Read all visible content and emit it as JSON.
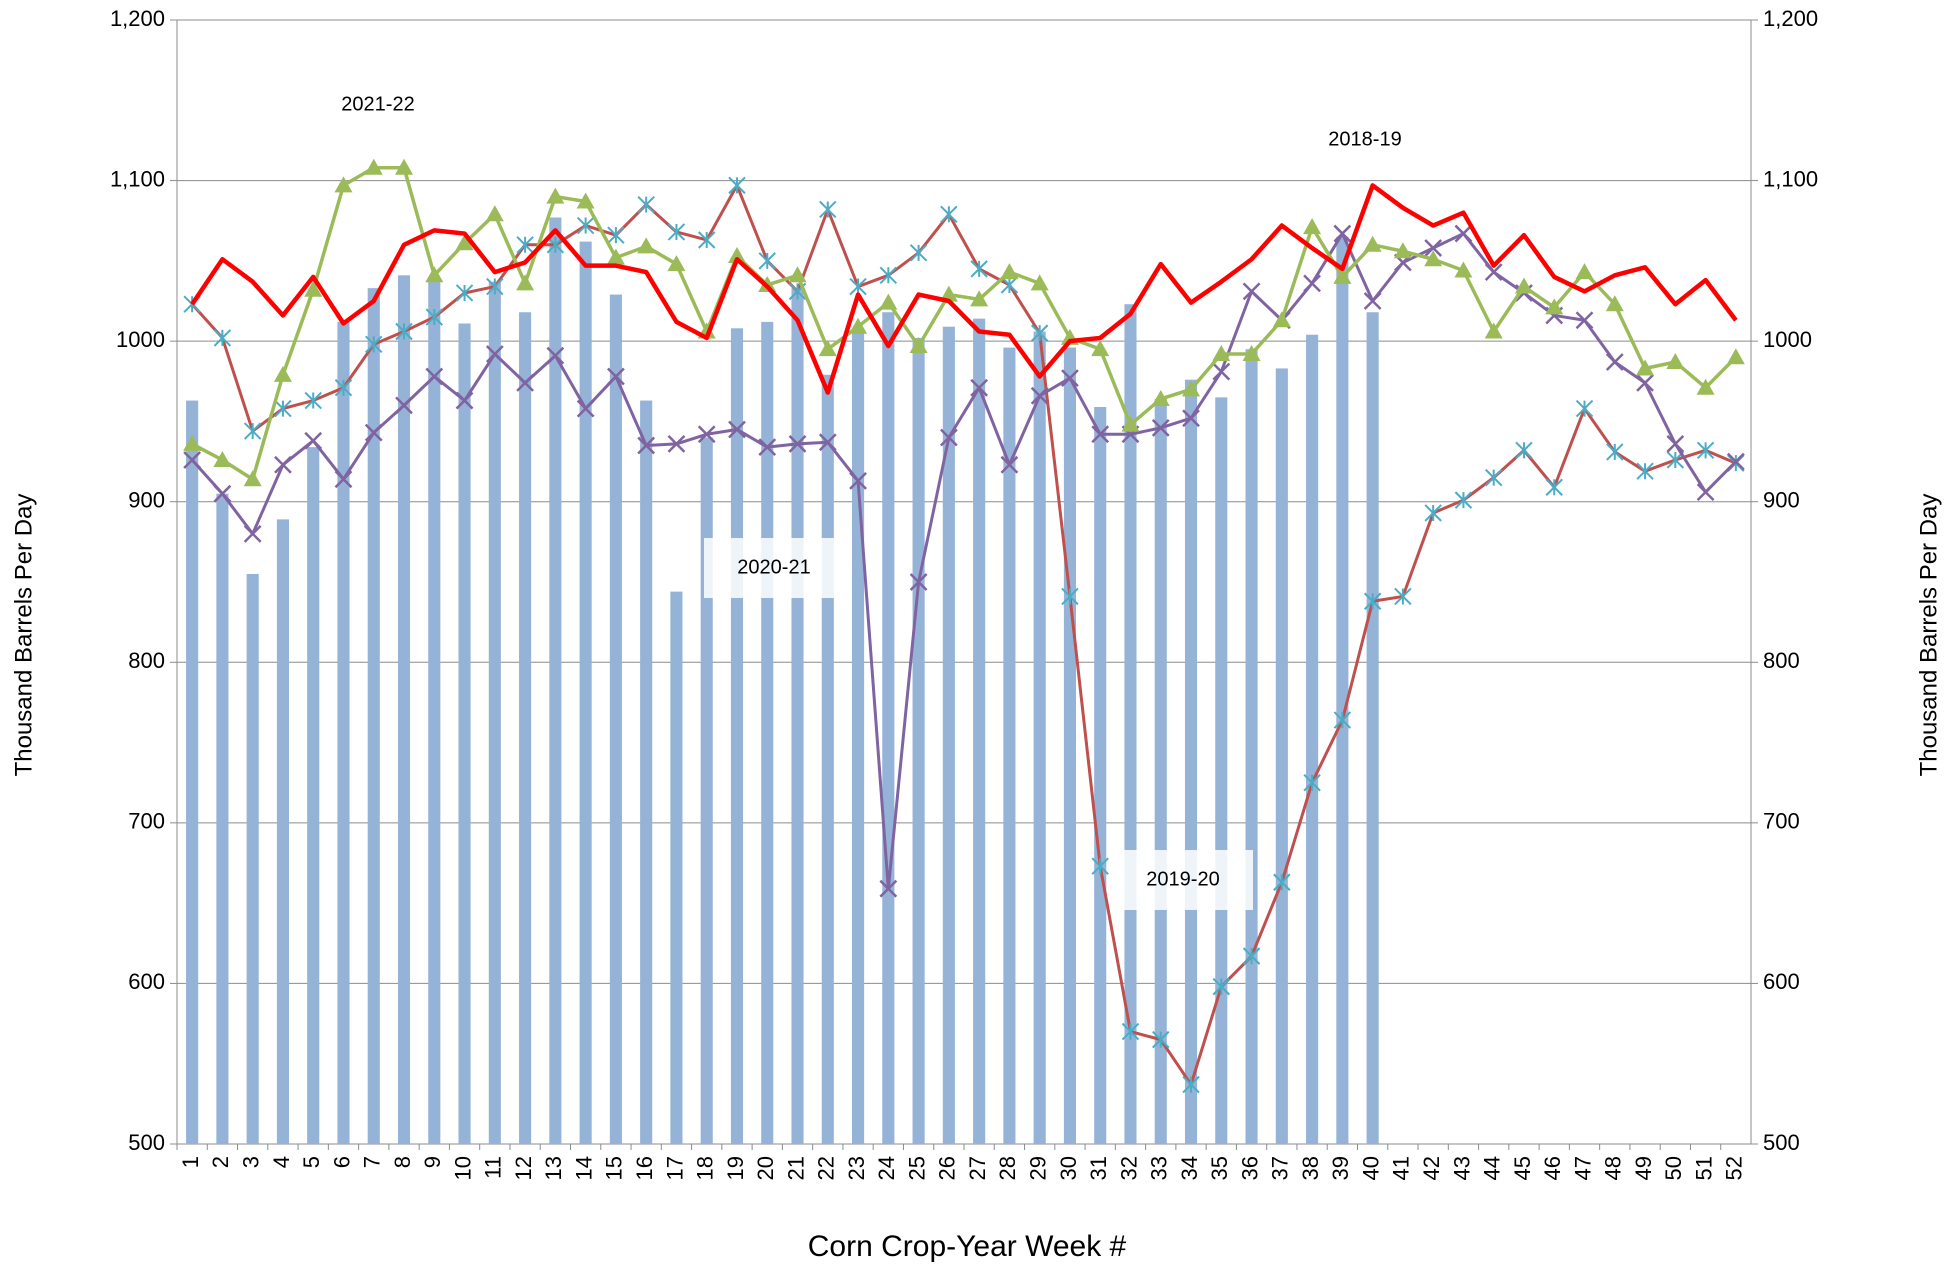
{
  "chart_data": {
    "type": "combo",
    "x_label": "Corn Crop-Year Week #",
    "y_label": "Thousand Barrels Per Day",
    "y2_label": "Thousand Barrels Per Day",
    "categories": [
      "1",
      "2",
      "3",
      "4",
      "5",
      "6",
      "7",
      "8",
      "9",
      "10",
      "11",
      "12",
      "13",
      "14",
      "15",
      "16",
      "17",
      "18",
      "19",
      "20",
      "21",
      "22",
      "23",
      "24",
      "25",
      "26",
      "27",
      "28",
      "29",
      "30",
      "31",
      "32",
      "33",
      "34",
      "35",
      "36",
      "37",
      "38",
      "39",
      "40",
      "41",
      "42",
      "43",
      "44",
      "45",
      "46",
      "47",
      "48",
      "49",
      "50",
      "51",
      "52"
    ],
    "ylim": [
      500,
      1200
    ],
    "yticks": [
      500,
      600,
      700,
      800,
      900,
      1000,
      {
        "value": 1100,
        "label": "1,100"
      },
      {
        "value": 1200,
        "label": "1,200"
      }
    ],
    "y2lim": [
      500,
      1200
    ],
    "y2ticks": [
      500,
      600,
      700,
      800,
      900,
      1000,
      {
        "value": 1100,
        "label": "1,100"
      },
      {
        "value": 1200,
        "label": "1,200"
      }
    ],
    "grid": true,
    "annotations": [
      "2021-22",
      "2020-21",
      "2019-20",
      "2018-19"
    ],
    "series": [
      {
        "type": "bar",
        "color": "#95b3d7",
        "values": [
          963,
          905,
          855,
          889,
          934,
          1012,
          1033,
          1041,
          1040,
          1011,
          1037,
          1018,
          1077,
          1062,
          1029,
          963,
          844,
          940,
          1008,
          1012,
          1033,
          979,
          1006,
          1018,
          1002,
          1009,
          1014,
          996,
          1006,
          996,
          959,
          1023,
          964,
          976,
          965,
          995,
          983,
          1004,
          1065,
          1018,
          null,
          null,
          null,
          null,
          null,
          null,
          null,
          null,
          null,
          null,
          null,
          null
        ]
      },
      {
        "type": "line",
        "color": "#c0504d",
        "marker": "asterisk",
        "marker_color": "#4bacc6",
        "width": 3,
        "values": [
          1023,
          1002,
          944,
          958,
          963,
          971,
          998,
          1006,
          1015,
          1030,
          1034,
          1060,
          1060,
          1072,
          1066,
          1085,
          1068,
          1063,
          1097,
          1050,
          1031,
          1082,
          1034,
          1041,
          1055,
          1079,
          1045,
          1035,
          1005,
          841,
          673,
          570,
          565,
          537,
          598,
          617,
          663,
          725,
          764,
          838,
          841,
          893,
          901,
          915,
          932,
          909,
          958,
          931,
          919,
          926,
          932,
          924
        ]
      },
      {
        "type": "line",
        "color": "#8064a2",
        "marker": "x",
        "marker_color": "#8064a2",
        "width": 3,
        "values": [
          926,
          905,
          880,
          923,
          938,
          914,
          943,
          960,
          978,
          963,
          992,
          974,
          991,
          958,
          978,
          935,
          936,
          942,
          945,
          934,
          936,
          937,
          913,
          659,
          850,
          940,
          971,
          923,
          966,
          977,
          942,
          942,
          946,
          952,
          981,
          1031,
          1013,
          1036,
          1067,
          1025,
          1049,
          1058,
          1067,
          1043,
          1030,
          1016,
          1013,
          987,
          974,
          936,
          906,
          925
        ]
      },
      {
        "type": "line",
        "color": "#9bbb59",
        "marker": "triangle",
        "marker_color": "#9bbb59",
        "width": 3.5,
        "values": [
          936,
          926,
          914,
          979,
          1032,
          1097,
          1108,
          1108,
          1041,
          1061,
          1079,
          1036,
          1090,
          1087,
          1052,
          1059,
          1048,
          1006,
          1053,
          1035,
          1041,
          995,
          1009,
          1024,
          997,
          1029,
          1026,
          1043,
          1036,
          1002,
          995,
          948,
          964,
          970,
          992,
          992,
          1013,
          1071,
          1040,
          1060,
          1056,
          1051,
          1044,
          1006,
          1034,
          1021,
          1043,
          1023,
          983,
          987,
          971,
          990
        ]
      },
      {
        "type": "line",
        "color": "#ff0000",
        "marker": "none",
        "width": 4.5,
        "values": [
          1023,
          1051,
          1037,
          1016,
          1040,
          1011,
          1025,
          1060,
          1069,
          1067,
          1043,
          1049,
          1069,
          1047,
          1047,
          1043,
          1012,
          1002,
          1051,
          1034,
          1013,
          968,
          1029,
          997,
          1029,
          1025,
          1006,
          1004,
          978,
          1000,
          1002,
          1017,
          1048,
          1024,
          1037,
          1051,
          1072,
          1058,
          1045,
          1097,
          1083,
          1072,
          1080,
          1047,
          1066,
          1040,
          1031,
          1041,
          1046,
          1023,
          1038,
          1013
        ]
      }
    ]
  }
}
